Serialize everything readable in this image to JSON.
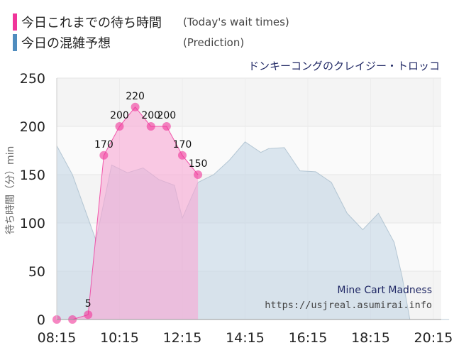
{
  "legend": {
    "actual_label": "今日これまでの待ち時間",
    "actual_note": "(Today's wait times)",
    "predict_label": "今日の混雑予想",
    "predict_note": "(Prediction)"
  },
  "ride_name": "ドンキーコングのクレイジー・トロッコ",
  "watermark": {
    "ride_en": "Mine Cart Madness",
    "url": "https://usjreal.asumirai.info"
  },
  "colors": {
    "actual": "#f0359a",
    "actual_fill": "#f9a6d4",
    "prediction": "#4f8cbe",
    "prediction_fill": "#bfd3e3"
  },
  "chart_data": {
    "type": "area",
    "ylabel": "待ち時間（分）min",
    "ylim": [
      0,
      250
    ],
    "yticks": [
      0,
      50,
      100,
      150,
      200,
      250
    ],
    "xlim_minutes": [
      495,
      1230
    ],
    "xticks": [
      "08:15",
      "10:15",
      "12:15",
      "14:15",
      "16:15",
      "18:15",
      "20:15"
    ],
    "grid": true,
    "series": [
      {
        "name": "今日の混雑予想",
        "kind": "prediction",
        "points": [
          [
            "08:15",
            180
          ],
          [
            "08:45",
            150
          ],
          [
            "09:30",
            82
          ],
          [
            "10:00",
            160
          ],
          [
            "10:30",
            152
          ],
          [
            "11:00",
            157
          ],
          [
            "11:30",
            145
          ],
          [
            "12:00",
            139
          ],
          [
            "12:15",
            105
          ],
          [
            "12:45",
            142
          ],
          [
            "13:15",
            150
          ],
          [
            "13:45",
            165
          ],
          [
            "14:15",
            184
          ],
          [
            "14:45",
            173
          ],
          [
            "15:00",
            177
          ],
          [
            "15:30",
            178
          ],
          [
            "16:00",
            154
          ],
          [
            "16:30",
            153
          ],
          [
            "17:00",
            142
          ],
          [
            "17:30",
            110
          ],
          [
            "18:00",
            93
          ],
          [
            "18:30",
            110
          ],
          [
            "19:00",
            80
          ],
          [
            "19:15",
            45
          ],
          [
            "19:30",
            0
          ],
          [
            "20:45",
            0
          ]
        ]
      },
      {
        "name": "今日これまでの待ち時間",
        "kind": "actual",
        "points": [
          [
            "08:15",
            0
          ],
          [
            "08:45",
            0
          ],
          [
            "09:15",
            5
          ],
          [
            "09:45",
            170
          ],
          [
            "10:15",
            200
          ],
          [
            "10:45",
            220
          ],
          [
            "11:15",
            200
          ],
          [
            "11:45",
            200
          ],
          [
            "12:15",
            170
          ],
          [
            "12:45",
            150
          ]
        ],
        "labels": [
          "",
          "",
          "5",
          "170",
          "200",
          "220",
          "200",
          "200",
          "170",
          "150"
        ]
      }
    ]
  }
}
